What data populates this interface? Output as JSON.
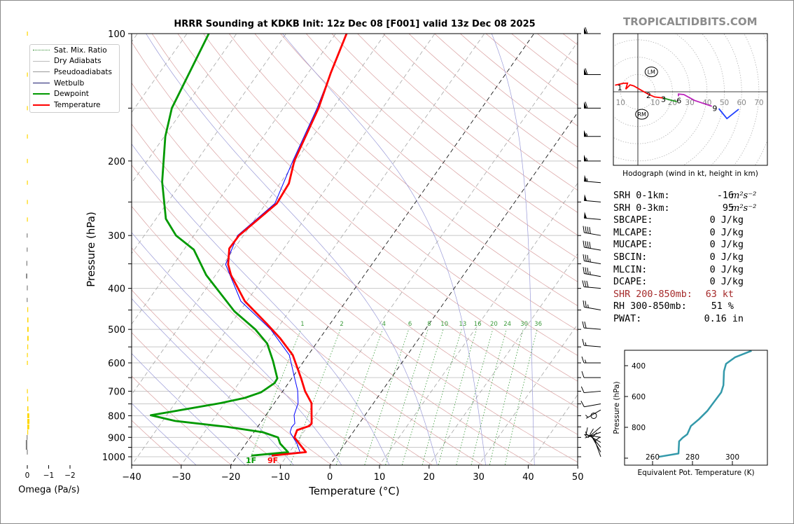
{
  "title": "HRRR Sounding at KDKB Init: 12z Dec 08 [F001] valid 13z Dec 08 2025",
  "brand": "TROPICALTIDBITS.COM",
  "legend": [
    {
      "label": "Sat. Mix. Ratio",
      "color": "#2e8b2e",
      "style": "dotted"
    },
    {
      "label": "Dry Adiabats",
      "color": "#bbbbbb",
      "style": "solid"
    },
    {
      "label": "Pseudoadiabats",
      "color": "#999999",
      "style": "solid"
    },
    {
      "label": "Wetbulb",
      "color": "#1a1a6e",
      "style": "solid"
    },
    {
      "label": "Dewpoint",
      "color": "#009900",
      "style": "thick"
    },
    {
      "label": "Temperature",
      "color": "#ff0000",
      "style": "thick"
    }
  ],
  "stats": [
    {
      "label": "SRH 0-1km:",
      "value": "-16",
      "unit": "m²s⁻²"
    },
    {
      "label": "SRH 0-3km:",
      "value": "95",
      "unit": "m²s⁻²"
    },
    {
      "label": "SBCAPE:",
      "value": "0 J/kg"
    },
    {
      "label": "MLCAPE:",
      "value": "0 J/kg"
    },
    {
      "label": "MUCAPE:",
      "value": "0 J/kg"
    },
    {
      "label": "SBCIN:",
      "value": "0 J/kg"
    },
    {
      "label": "MLCIN:",
      "value": "0 J/kg"
    },
    {
      "label": "DCAPE:",
      "value": "0 J/kg"
    },
    {
      "label": "SHR 200-850mb:",
      "value": "63 kt"
    },
    {
      "label": "RH 300-850mb:",
      "value": "51 %"
    },
    {
      "label": "PWAT:",
      "value": "0.16 in"
    }
  ],
  "chart_data": [
    {
      "type": "line",
      "name": "skewt",
      "xlabel": "Temperature (°C)",
      "ylabel": "Pressure (hPa)",
      "xlim": [
        -40,
        50
      ],
      "ylim": [
        1050,
        100
      ],
      "xticks": [
        -40,
        -30,
        -20,
        -10,
        0,
        10,
        20,
        30,
        40,
        50
      ],
      "xtick_labels": [
        "−40",
        "−30",
        "−20",
        "−10",
        "0",
        "10",
        "20",
        "30",
        "40",
        "50"
      ],
      "yticks": [
        100,
        200,
        300,
        400,
        500,
        600,
        700,
        800,
        900,
        1000
      ],
      "ytick_labels": [
        "100",
        "200",
        "300",
        "400",
        "500",
        "600",
        "700",
        "800",
        "900",
        "1000"
      ],
      "grid_pressures": [
        100,
        150,
        200,
        250,
        300,
        350,
        400,
        450,
        500,
        550,
        600,
        650,
        700,
        750,
        800,
        850,
        900,
        950,
        1000
      ],
      "mixing_ratios": [
        1,
        2,
        4,
        6,
        8,
        10,
        13,
        16,
        20,
        24,
        30,
        36
      ],
      "mixing_ratio_labels": [
        "1",
        "2",
        "4",
        "6",
        "8",
        "10",
        "13",
        "16",
        "20",
        "24",
        "30",
        "36"
      ],
      "highlight_isotherms": [
        -20,
        0
      ],
      "surface_labels": {
        "dewpoint": "1F",
        "temperature": "9F"
      },
      "series": [
        {
          "name": "Temperature",
          "color": "#ff0000",
          "points": [
            [
              100,
              -57.8
            ],
            [
              124,
              -55.4
            ],
            [
              150,
              -52.9
            ],
            [
              200,
              -50.3
            ],
            [
              226,
              -48.2
            ],
            [
              252,
              -47.8
            ],
            [
              300,
              -50.9
            ],
            [
              322,
              -51
            ],
            [
              351,
              -49
            ],
            [
              372,
              -46.9
            ],
            [
              429,
              -40.4
            ],
            [
              484,
              -32.9
            ],
            [
              525,
              -28
            ],
            [
              575,
              -23.1
            ],
            [
              653,
              -18.1
            ],
            [
              700,
              -15.5
            ],
            [
              747,
              -12.5
            ],
            [
              834,
              -9.6
            ],
            [
              846,
              -9.7
            ],
            [
              865,
              -11.6
            ],
            [
              900,
              -11.1
            ],
            [
              975,
              -6.7
            ],
            [
              994,
              -13.1
            ]
          ]
        },
        {
          "name": "Dewpoint",
          "color": "#009900",
          "points": [
            [
              100,
              -85.6
            ],
            [
              150,
              -82.5
            ],
            [
              175,
              -79.8
            ],
            [
              224,
              -74
            ],
            [
              274,
              -68
            ],
            [
              300,
              -63.6
            ],
            [
              324,
              -58
            ],
            [
              372,
              -51.9
            ],
            [
              453,
              -41.1
            ],
            [
              500,
              -34.3
            ],
            [
              540,
              -29.9
            ],
            [
              593,
              -26.3
            ],
            [
              653,
              -22.9
            ],
            [
              670,
              -22.8
            ],
            [
              704,
              -24.2
            ],
            [
              726,
              -26.7
            ],
            [
              747,
              -30.9
            ],
            [
              798,
              -43.2
            ],
            [
              823,
              -37.5
            ],
            [
              850,
              -26.1
            ],
            [
              875,
              -18.2
            ],
            [
              900,
              -14.4
            ],
            [
              931,
              -13.1
            ],
            [
              975,
              -10.3
            ],
            [
              994,
              -17.2
            ]
          ]
        },
        {
          "name": "Wetbulb",
          "color": "#0000ff",
          "points": [
            [
              100,
              -57.9
            ],
            [
              150,
              -53.2
            ],
            [
              200,
              -50.6
            ],
            [
              252,
              -48.2
            ],
            [
              300,
              -51.2
            ],
            [
              351,
              -49.5
            ],
            [
              429,
              -41.2
            ],
            [
              500,
              -31.2
            ],
            [
              575,
              -23.8
            ],
            [
              653,
              -19.4
            ],
            [
              697,
              -17.1
            ],
            [
              747,
              -15.2
            ],
            [
              798,
              -14.3
            ],
            [
              834,
              -13
            ],
            [
              851,
              -13.1
            ],
            [
              875,
              -12.7
            ],
            [
              931,
              -9.7
            ],
            [
              975,
              -7.9
            ],
            [
              990,
              -13.7
            ]
          ]
        }
      ],
      "winds": [
        {
          "p": 100,
          "dir": 270,
          "kt": 60
        },
        {
          "p": 125,
          "dir": 270,
          "kt": 60
        },
        {
          "p": 150,
          "dir": 270,
          "kt": 60
        },
        {
          "p": 175,
          "dir": 270,
          "kt": 55
        },
        {
          "p": 200,
          "dir": 270,
          "kt": 55
        },
        {
          "p": 225,
          "dir": 275,
          "kt": 55
        },
        {
          "p": 250,
          "dir": 275,
          "kt": 50
        },
        {
          "p": 275,
          "dir": 275,
          "kt": 50
        },
        {
          "p": 300,
          "dir": 280,
          "kt": 40
        },
        {
          "p": 325,
          "dir": 280,
          "kt": 40
        },
        {
          "p": 350,
          "dir": 280,
          "kt": 35
        },
        {
          "p": 375,
          "dir": 280,
          "kt": 35
        },
        {
          "p": 400,
          "dir": 275,
          "kt": 30
        },
        {
          "p": 450,
          "dir": 280,
          "kt": 25
        },
        {
          "p": 500,
          "dir": 275,
          "kt": 20
        },
        {
          "p": 550,
          "dir": 275,
          "kt": 15
        },
        {
          "p": 600,
          "dir": 270,
          "kt": 15
        },
        {
          "p": 650,
          "dir": 270,
          "kt": 10
        },
        {
          "p": 700,
          "dir": 265,
          "kt": 10
        },
        {
          "p": 750,
          "dir": 260,
          "kt": 10
        },
        {
          "p": 775,
          "dir": 240,
          "kt": 5
        },
        {
          "p": 800,
          "dir": 0,
          "kt": 0
        },
        {
          "p": 850,
          "dir": 230,
          "kt": 5
        },
        {
          "p": 875,
          "dir": 250,
          "kt": 5
        },
        {
          "p": 900,
          "dir": 280,
          "kt": 5
        },
        {
          "p": 925,
          "dir": 300,
          "kt": 10
        },
        {
          "p": 950,
          "dir": 320,
          "kt": 10
        },
        {
          "p": 975,
          "dir": 330,
          "kt": 10
        },
        {
          "p": 1000,
          "dir": 340,
          "kt": 10
        }
      ]
    },
    {
      "type": "bar",
      "name": "omega",
      "xlabel": "Omega (Pa/s)",
      "xticks": [
        0,
        -1,
        -2
      ],
      "xtick_labels": [
        "0",
        "−1",
        "−2"
      ],
      "colors": {
        "positive": "#808080",
        "negative": "#ffd700"
      },
      "bars": [
        [
          100,
          -0.01
        ],
        [
          125,
          -0.01
        ],
        [
          150,
          -0.01
        ],
        [
          175,
          -0.01
        ],
        [
          200,
          -0.01
        ],
        [
          225,
          -0.01
        ],
        [
          250,
          -0.01
        ],
        [
          275,
          -0.01
        ],
        [
          300,
          0.01
        ],
        [
          324,
          0.01
        ],
        [
          349,
          0.04
        ],
        [
          374,
          0.06
        ],
        [
          399,
          0.02
        ],
        [
          426,
          0.01
        ],
        [
          449,
          -0.02
        ],
        [
          475,
          -0.05
        ],
        [
          500,
          -0.06
        ],
        [
          525,
          -0.06
        ],
        [
          550,
          -0.03
        ],
        [
          575,
          -0.01
        ],
        [
          600,
          -0.01
        ],
        [
          700,
          -0.01
        ],
        [
          730,
          -0.02
        ],
        [
          770,
          -0.05
        ],
        [
          800,
          -0.09
        ],
        [
          825,
          -0.1
        ],
        [
          850,
          -0.09
        ],
        [
          875,
          -0.03
        ],
        [
          900,
          0.03
        ],
        [
          925,
          0.07
        ],
        [
          950,
          0.07
        ],
        [
          975,
          0.02
        ]
      ]
    },
    {
      "type": "line",
      "name": "theta-e",
      "xlabel": "Equivalent Pot. Temperature (K)",
      "ylabel": "Pressure (hPa)",
      "xlim": [
        246,
        317.5
      ],
      "ylim": [
        1045,
        300
      ],
      "xticks": [
        260,
        280,
        300
      ],
      "xtick_labels": [
        "260",
        "280",
        "300"
      ],
      "yticks": [
        400,
        600,
        800,
        1000
      ],
      "ytick_labels": [
        "400",
        "600",
        "800",
        ""
      ],
      "color": "#3399aa",
      "points": [
        [
          992,
          263
        ],
        [
          970,
          273
        ],
        [
          891,
          273.3
        ],
        [
          868,
          275
        ],
        [
          845,
          277.4
        ],
        [
          792,
          279.2
        ],
        [
          747,
          283.3
        ],
        [
          694,
          287.4
        ],
        [
          573,
          294.4
        ],
        [
          527,
          295.5
        ],
        [
          436,
          295.8
        ],
        [
          388,
          296.8
        ],
        [
          345,
          301.4
        ],
        [
          303,
          309.6
        ]
      ]
    },
    {
      "type": "line",
      "name": "hodograph",
      "title": "Hodograph (wind in kt, height in km)",
      "rings_kt": [
        10,
        20,
        30,
        40,
        50,
        60,
        70,
        80,
        90
      ],
      "xtick_labels": [
        {
          "u": -10,
          "t": "10"
        },
        {
          "u": 10,
          "t": "10"
        },
        {
          "u": 20,
          "t": "20"
        },
        {
          "u": 30,
          "t": "30"
        },
        {
          "u": 40,
          "t": "40"
        },
        {
          "u": 50,
          "t": "50"
        },
        {
          "u": 60,
          "t": "60"
        },
        {
          "u": 70,
          "t": "70"
        }
      ],
      "segments": [
        {
          "color": "#ff0000",
          "points": [
            [
              -13.2,
              3.8
            ],
            [
              -8.5,
              4.9
            ],
            [
              -6,
              5
            ],
            [
              -7,
              1.5
            ],
            [
              -4.5,
              4
            ],
            [
              -2.4,
              3.4
            ],
            [
              0.9,
              1.5
            ],
            [
              6.4,
              -1.6
            ],
            [
              9.7,
              -3
            ],
            [
              14.5,
              -3.6
            ]
          ]
        },
        {
          "color": "#229922",
          "points": [
            [
              14.5,
              -3.6
            ],
            [
              17.1,
              -4.3
            ],
            [
              22.5,
              -5.7
            ]
          ]
        },
        {
          "color": "#bb22bb",
          "points": [
            [
              23.5,
              -2.6
            ],
            [
              23.5,
              -1.3
            ],
            [
              26.6,
              -1.6
            ],
            [
              32.7,
              -5
            ],
            [
              42.8,
              -8.4
            ]
          ]
        },
        {
          "color": "#1f3fff",
          "points": [
            [
              46.8,
              -9.7
            ],
            [
              51.5,
              -15.5
            ],
            [
              58.3,
              -10.1
            ]
          ]
        }
      ],
      "height_labels": [
        {
          "t": "1",
          "u": -10.5,
          "v": 2.5
        },
        {
          "t": "2",
          "u": 6.2,
          "v": -2
        },
        {
          "t": "3",
          "u": 14.8,
          "v": -4.2
        },
        {
          "t": "6",
          "u": 23.8,
          "v": -5
        },
        {
          "t": "9",
          "u": 44.5,
          "v": -9.5
        }
      ],
      "motion_markers": [
        {
          "t": "LM",
          "u": 7.8,
          "v": 11.5
        },
        {
          "t": "RM",
          "u": 2.3,
          "v": -13
        }
      ]
    }
  ]
}
